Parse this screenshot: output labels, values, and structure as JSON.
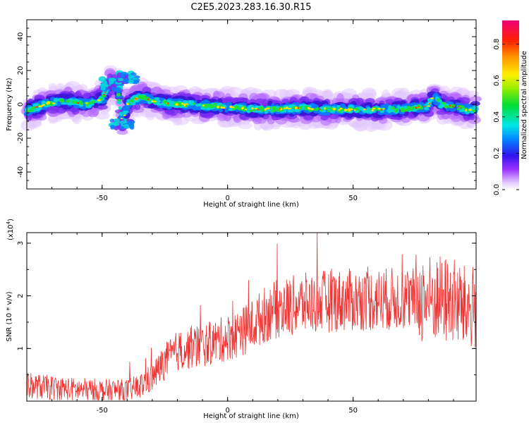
{
  "title": "C2E5.2023.283.16.30.R15",
  "chart_data": [
    {
      "type": "heatmap",
      "xlabel": "Height of straight line (km)",
      "ylabel": "Frequency (Hz)",
      "xlim": [
        -80,
        99
      ],
      "ylim": [
        -50,
        50
      ],
      "xticks": [
        -50,
        0,
        50
      ],
      "yticks": [
        -40,
        -20,
        0,
        20,
        40
      ],
      "colorbar": {
        "label": "Normalized spectral amplitude",
        "range": [
          0.0,
          0.93
        ],
        "ticks": [
          0.0,
          0.2,
          0.4,
          0.6,
          0.8
        ]
      },
      "ridge": {
        "x": [
          -80,
          -75,
          -70,
          -65,
          -60,
          -55,
          -50,
          -47,
          -44,
          -42,
          -40,
          -37,
          -34,
          -30,
          -25,
          -20,
          -15,
          -10,
          -5,
          0,
          5,
          10,
          20,
          30,
          40,
          50,
          60,
          70,
          80,
          82,
          85,
          90,
          95,
          99
        ],
        "y": [
          -4,
          -1,
          1,
          2,
          1,
          0,
          3,
          12,
          12,
          -12,
          0,
          3,
          4,
          2,
          1,
          0,
          0,
          -1,
          -1,
          -2,
          -2,
          -3,
          -3,
          -2,
          -3,
          -3,
          -3,
          -3,
          -1,
          5,
          0,
          -1,
          -3,
          -3
        ]
      }
    },
    {
      "type": "line",
      "xlabel": "Height of straight line (km)",
      "ylabel": "SNR (10 * v/v)",
      "yunit_label": "(x10",
      "yunit_exp": "4",
      "yunit_close": ")",
      "xlim": [
        -80,
        99
      ],
      "ylim": [
        0,
        3.2
      ],
      "xticks": [
        -50,
        0,
        50
      ],
      "yticks": [
        1,
        2,
        3
      ],
      "color": "#ee3333",
      "trend": {
        "x": [
          -80,
          -70,
          -60,
          -50,
          -40,
          -35,
          -30,
          -25,
          -20,
          -10,
          0,
          5,
          10,
          15,
          20,
          30,
          40,
          50,
          60,
          70,
          80,
          90,
          95,
          99
        ],
        "y": [
          0.3,
          0.25,
          0.22,
          0.2,
          0.2,
          0.28,
          0.45,
          0.75,
          0.95,
          1.05,
          1.2,
          1.3,
          1.45,
          1.65,
          1.75,
          1.85,
          1.9,
          1.92,
          1.93,
          1.95,
          1.95,
          1.9,
          1.75,
          1.8
        ]
      }
    }
  ]
}
